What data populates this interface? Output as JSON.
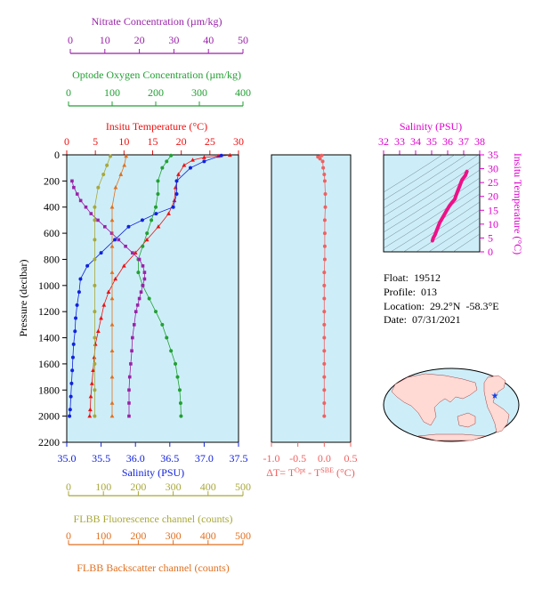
{
  "colors": {
    "panel_bg": "#cdeef8",
    "temperature": "#ee1111",
    "salinity": "#1122dd",
    "oxygen": "#22a033",
    "nitrate": "#9a22a8",
    "fluorescence": "#a8a83a",
    "backscatter": "#e07020",
    "delta_t": "#f06060",
    "ts_axis": "#dd00cc",
    "ts_curve": "#ee1188",
    "contour": "#445566"
  },
  "axes": {
    "nitrate": {
      "title": "Nitrate Concentration (µm/kg)",
      "ticks": [
        "0",
        "10",
        "20",
        "30",
        "40",
        "50"
      ]
    },
    "oxygen": {
      "title": "Optode Oxygen Concentration (µm/kg)",
      "ticks": [
        "0",
        "100",
        "200",
        "300",
        "400"
      ]
    },
    "temperature": {
      "title": "Insitu Temperature (°C)",
      "ticks": [
        "0",
        "5",
        "10",
        "15",
        "20",
        "25",
        "30"
      ]
    },
    "pressure": {
      "title": "Pressure (decibar)",
      "ticks": [
        "0",
        "200",
        "400",
        "600",
        "800",
        "1000",
        "1200",
        "1400",
        "1600",
        "1800",
        "2000",
        "2200"
      ]
    },
    "salinity": {
      "title": "Salinity (PSU)",
      "ticks": [
        "35.0",
        "35.5",
        "36.0",
        "36.5",
        "37.0",
        "37.5"
      ]
    },
    "fluorescence": {
      "title": "FLBB Fluorescence channel (counts)",
      "ticks": [
        "0",
        "100",
        "200",
        "300",
        "400",
        "500"
      ]
    },
    "backscatter": {
      "title": "FLBB Backscatter channel (counts)",
      "ticks": [
        "0",
        "100",
        "200",
        "300",
        "400",
        "500"
      ]
    },
    "delta_t": {
      "title_main": "ΔT= T",
      "sup1": "Opt",
      "mid": " - T",
      "sup2": "SBE",
      "unit": " (°C)",
      "ticks": [
        "-1.0",
        "-0.5",
        "0.0",
        "0.5"
      ]
    },
    "ts_salinity": {
      "title": "Salinity (PSU)",
      "ticks": [
        "32",
        "33",
        "34",
        "35",
        "36",
        "37",
        "38"
      ]
    },
    "ts_temperature": {
      "title": "Insitu Temperature (°C)",
      "ticks": [
        "0",
        "5",
        "10",
        "15",
        "20",
        "25",
        "30",
        "35"
      ]
    }
  },
  "info": {
    "float": "Float:  19512",
    "profile": "Profile:  013",
    "location": "Location:  29.2°N  -58.3°E",
    "date": "Date:  07/31/2021"
  },
  "chart_data": {
    "type": "scatter",
    "ylim": [
      0,
      2200
    ],
    "series": [
      {
        "key": "temperature",
        "xlim": [
          0,
          30
        ],
        "points": [
          [
            28.5,
            2
          ],
          [
            26.5,
            10
          ],
          [
            24,
            20
          ],
          [
            22,
            40
          ],
          [
            20.5,
            80
          ],
          [
            19.5,
            150
          ],
          [
            19,
            250
          ],
          [
            18.8,
            350
          ],
          [
            17.8,
            450
          ],
          [
            16,
            550
          ],
          [
            14,
            650
          ],
          [
            12,
            750
          ],
          [
            10,
            850
          ],
          [
            8.5,
            950
          ],
          [
            7.3,
            1050
          ],
          [
            6.5,
            1150
          ],
          [
            6,
            1250
          ],
          [
            5.5,
            1350
          ],
          [
            5,
            1450
          ],
          [
            4.8,
            1550
          ],
          [
            4.6,
            1650
          ],
          [
            4.4,
            1750
          ],
          [
            4.2,
            1850
          ],
          [
            4.1,
            1950
          ],
          [
            4,
            2000
          ]
        ]
      },
      {
        "key": "salinity",
        "xlim": [
          35.0,
          37.5
        ],
        "points": [
          [
            37.25,
            5
          ],
          [
            37.0,
            50
          ],
          [
            36.8,
            100
          ],
          [
            36.6,
            200
          ],
          [
            36.6,
            300
          ],
          [
            36.55,
            400
          ],
          [
            36.3,
            450
          ],
          [
            36.1,
            500
          ],
          [
            35.9,
            550
          ],
          [
            35.7,
            650
          ],
          [
            35.5,
            750
          ],
          [
            35.3,
            850
          ],
          [
            35.2,
            950
          ],
          [
            35.18,
            1050
          ],
          [
            35.15,
            1150
          ],
          [
            35.13,
            1250
          ],
          [
            35.12,
            1350
          ],
          [
            35.1,
            1450
          ],
          [
            35.09,
            1550
          ],
          [
            35.08,
            1650
          ],
          [
            35.07,
            1750
          ],
          [
            35.06,
            1850
          ],
          [
            35.05,
            1950
          ],
          [
            35.04,
            2000
          ]
        ]
      },
      {
        "key": "oxygen",
        "xlim": [
          0,
          400
        ],
        "points": [
          [
            235,
            5
          ],
          [
            225,
            50
          ],
          [
            215,
            100
          ],
          [
            205,
            200
          ],
          [
            205,
            300
          ],
          [
            200,
            400
          ],
          [
            190,
            500
          ],
          [
            180,
            600
          ],
          [
            170,
            700
          ],
          [
            160,
            800
          ],
          [
            160,
            900
          ],
          [
            170,
            1000
          ],
          [
            185,
            1100
          ],
          [
            200,
            1200
          ],
          [
            215,
            1300
          ],
          [
            225,
            1400
          ],
          [
            235,
            1500
          ],
          [
            245,
            1600
          ],
          [
            250,
            1700
          ],
          [
            255,
            1800
          ],
          [
            257,
            1900
          ],
          [
            258,
            2000
          ]
        ]
      },
      {
        "key": "nitrate",
        "xlim": [
          0,
          50
        ],
        "points": [
          [
            0.5,
            200
          ],
          [
            1,
            250
          ],
          [
            2,
            300
          ],
          [
            3,
            350
          ],
          [
            4.5,
            400
          ],
          [
            6,
            450
          ],
          [
            8,
            500
          ],
          [
            10,
            550
          ],
          [
            12,
            600
          ],
          [
            14,
            650
          ],
          [
            16,
            700
          ],
          [
            18,
            750
          ],
          [
            20,
            800
          ],
          [
            21,
            850
          ],
          [
            21.5,
            900
          ],
          [
            21.5,
            950
          ],
          [
            21,
            1000
          ],
          [
            20.5,
            1050
          ],
          [
            20,
            1100
          ],
          [
            19.5,
            1150
          ],
          [
            19,
            1200
          ],
          [
            18.5,
            1300
          ],
          [
            18,
            1400
          ],
          [
            17.8,
            1500
          ],
          [
            17.5,
            1600
          ],
          [
            17.2,
            1700
          ],
          [
            17,
            1800
          ],
          [
            17,
            1900
          ],
          [
            17,
            2000
          ]
        ]
      },
      {
        "key": "fluorescence",
        "xlim": [
          0,
          500
        ],
        "points": [
          [
            120,
            10
          ],
          [
            110,
            80
          ],
          [
            100,
            150
          ],
          [
            85,
            250
          ],
          [
            75,
            400
          ],
          [
            75,
            500
          ],
          [
            75,
            650
          ],
          [
            75,
            800
          ],
          [
            75,
            1000
          ],
          [
            75,
            1200
          ],
          [
            75,
            1400
          ],
          [
            75,
            1600
          ],
          [
            75,
            1800
          ],
          [
            75,
            2000
          ]
        ]
      },
      {
        "key": "backscatter",
        "xlim": [
          0,
          500
        ],
        "points": [
          [
            165,
            10
          ],
          [
            160,
            80
          ],
          [
            150,
            150
          ],
          [
            135,
            250
          ],
          [
            125,
            400
          ],
          [
            125,
            500
          ],
          [
            125,
            700
          ],
          [
            125,
            900
          ],
          [
            125,
            1100
          ],
          [
            125,
            1300
          ],
          [
            125,
            1500
          ],
          [
            125,
            1700
          ],
          [
            125,
            1900
          ],
          [
            125,
            2000
          ]
        ]
      },
      {
        "key": "delta_t",
        "xlim": [
          -1.0,
          0.5
        ],
        "points": [
          [
            -0.05,
            5
          ],
          [
            -0.12,
            15
          ],
          [
            -0.08,
            30
          ],
          [
            -0.03,
            50
          ],
          [
            -0.02,
            100
          ],
          [
            0.0,
            150
          ],
          [
            0.01,
            200
          ],
          [
            0.02,
            300
          ],
          [
            0.02,
            400
          ],
          [
            0.01,
            500
          ],
          [
            0.01,
            600
          ],
          [
            0.01,
            700
          ],
          [
            0.01,
            800
          ],
          [
            0.0,
            900
          ],
          [
            0.0,
            1000
          ],
          [
            0.0,
            1100
          ],
          [
            0.0,
            1200
          ],
          [
            0.0,
            1300
          ],
          [
            0.0,
            1400
          ],
          [
            0.0,
            1500
          ],
          [
            0.0,
            1600
          ],
          [
            0.0,
            1700
          ],
          [
            0.0,
            1800
          ],
          [
            0.0,
            1900
          ],
          [
            0.0,
            2000
          ]
        ]
      }
    ],
    "ts_diagram": {
      "xlim": [
        32,
        38
      ],
      "ylim": [
        0,
        35
      ],
      "points": [
        [
          37.2,
          29
        ],
        [
          37.1,
          27.5
        ],
        [
          36.9,
          26
        ],
        [
          36.8,
          24.5
        ],
        [
          36.7,
          23
        ],
        [
          36.6,
          21.5
        ],
        [
          36.5,
          20
        ],
        [
          36.45,
          19
        ],
        [
          36.3,
          18
        ],
        [
          36.1,
          16.5
        ],
        [
          35.9,
          14.5
        ],
        [
          35.7,
          12.5
        ],
        [
          35.5,
          10.5
        ],
        [
          35.4,
          9
        ],
        [
          35.3,
          7.5
        ],
        [
          35.2,
          6
        ],
        [
          35.1,
          5
        ],
        [
          35.05,
          4
        ]
      ]
    }
  }
}
